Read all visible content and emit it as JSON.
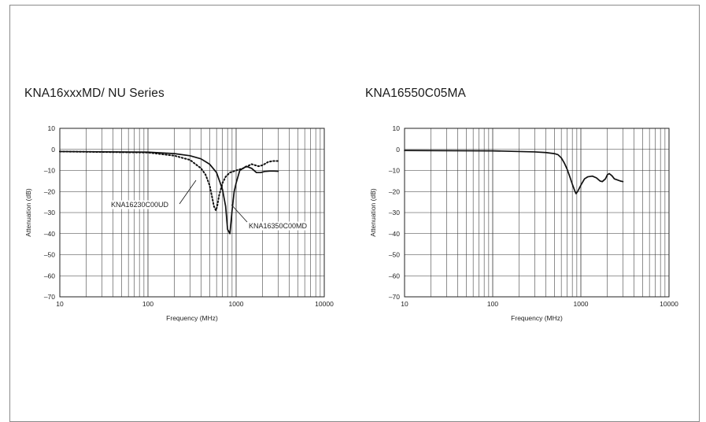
{
  "chart_data": [
    {
      "type": "line",
      "title": "KNA16xxxMD/ NU Series",
      "xlabel": "Frequency (MHz)",
      "ylabel": "Attenuation (dB)",
      "xscale": "log",
      "xlim": [
        10,
        10000
      ],
      "ylim": [
        -70,
        10
      ],
      "xticks": [
        "10",
        "100",
        "1000",
        "10000"
      ],
      "yticks": [
        "10",
        "0",
        "–10",
        "–20",
        "–30",
        "–40",
        "–50",
        "–60",
        "–70"
      ],
      "grid": true,
      "series": [
        {
          "name": "KNA16350C00MD",
          "style": "solid",
          "x": [
            10,
            100,
            200,
            300,
            400,
            500,
            600,
            700,
            760,
            800,
            850,
            900,
            950,
            1000,
            1100,
            1300,
            1500,
            1700,
            1900,
            2100,
            2400,
            2700,
            3000
          ],
          "y": [
            -1,
            -1.3,
            -2,
            -3,
            -4.5,
            -7,
            -11,
            -19,
            -27,
            -38,
            -40,
            -29,
            -20,
            -16,
            -10,
            -8,
            -9,
            -11,
            -11,
            -10.5,
            -10.3,
            -10.3,
            -10.4
          ]
        },
        {
          "name": "KNA16230C00UD",
          "style": "dotted",
          "x": [
            10,
            100,
            200,
            300,
            400,
            450,
            500,
            530,
            560,
            590,
            610,
            640,
            670,
            700,
            760,
            850,
            1000,
            1200,
            1500,
            1800,
            2000,
            2300,
            2600,
            3000
          ],
          "y": [
            -1,
            -1.5,
            -3,
            -5,
            -9,
            -12,
            -17,
            -22,
            -27,
            -29,
            -27,
            -22,
            -19,
            -16,
            -13,
            -11,
            -10,
            -9,
            -7,
            -8,
            -7.5,
            -6,
            -5.5,
            -5.5
          ]
        }
      ],
      "annotations": [
        "KNA16230C00UD",
        "KNA16350C00MD"
      ]
    },
    {
      "type": "line",
      "title": "KNA16550C05MA",
      "xlabel": "Frequency (MHz)",
      "ylabel": "Attenuation (dB)",
      "xscale": "log",
      "xlim": [
        10,
        10000
      ],
      "ylim": [
        -70,
        10
      ],
      "xticks": [
        "10",
        "100",
        "1000",
        "10000"
      ],
      "yticks": [
        "10",
        "0",
        "–10",
        "–20",
        "–30",
        "–40",
        "–50",
        "–60",
        "–70"
      ],
      "grid": true,
      "series": [
        {
          "style": "solid",
          "x": [
            10,
            100,
            200,
            300,
            400,
            500,
            550,
            600,
            650,
            700,
            750,
            800,
            850,
            880,
            920,
            1000,
            1100,
            1200,
            1350,
            1500,
            1650,
            1750,
            1900,
            2000,
            2100,
            2250,
            2400,
            2600,
            2800,
            3000
          ],
          "y": [
            -0.5,
            -0.7,
            -1,
            -1.2,
            -1.5,
            -2,
            -2.5,
            -4,
            -6.5,
            -9.5,
            -13,
            -16.5,
            -19.5,
            -21,
            -20,
            -17,
            -14,
            -13,
            -12.7,
            -13.5,
            -15,
            -15.3,
            -14,
            -12,
            -11.5,
            -12.5,
            -14,
            -14.5,
            -15,
            -15.3
          ]
        }
      ]
    }
  ]
}
